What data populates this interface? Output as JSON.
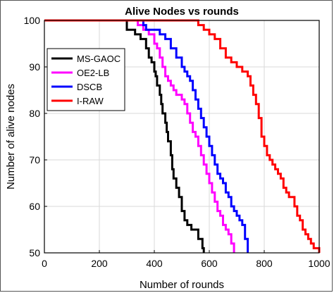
{
  "chart_data": {
    "type": "line",
    "title": "Alive Nodes vs rounds",
    "xlabel": "Number of rounds",
    "ylabel": "Number of alive nodes",
    "xlim": [
      0,
      1000
    ],
    "ylim": [
      50,
      100
    ],
    "xticks": [
      "0",
      "200",
      "400",
      "600",
      "800",
      "1000"
    ],
    "yticks": [
      "50",
      "60",
      "70",
      "80",
      "90",
      "100"
    ],
    "grid": true,
    "legend_position": "left",
    "series": [
      {
        "name": "MS-GAOC",
        "color": "#000000",
        "x": [
          0,
          290,
          300,
          330,
          350,
          370,
          380,
          390,
          400,
          405,
          410,
          420,
          425,
          430,
          440,
          445,
          450,
          460,
          465,
          470,
          480,
          490,
          500,
          510,
          520,
          535,
          560,
          575,
          580
        ],
        "y": [
          100,
          100,
          98,
          97,
          96,
          94,
          92,
          91,
          89,
          88,
          86,
          84,
          82,
          80,
          78,
          76,
          74,
          71,
          68,
          66,
          64,
          62,
          59,
          57,
          56,
          55,
          53,
          51,
          50
        ]
      },
      {
        "name": "OE2-LB",
        "color": "#ff00ff",
        "x": [
          0,
          330,
          340,
          360,
          380,
          400,
          410,
          420,
          430,
          440,
          450,
          460,
          470,
          480,
          500,
          510,
          520,
          530,
          540,
          550,
          560,
          570,
          580,
          590,
          600,
          610,
          620,
          630,
          640,
          650,
          660,
          670,
          680,
          690
        ],
        "y": [
          100,
          100,
          99,
          98,
          97,
          95,
          94,
          92,
          90,
          88,
          87,
          86,
          85,
          84,
          83,
          82,
          80,
          78,
          76,
          75,
          73,
          71,
          69,
          67,
          65,
          63,
          61,
          59,
          58,
          56,
          55,
          54,
          52,
          50
        ]
      },
      {
        "name": "DSCB",
        "color": "#0000ff",
        "x": [
          0,
          350,
          360,
          370,
          400,
          420,
          440,
          460,
          480,
          500,
          510,
          520,
          530,
          540,
          550,
          560,
          570,
          580,
          590,
          600,
          610,
          620,
          630,
          640,
          650,
          660,
          670,
          680,
          690,
          700,
          710,
          720,
          730,
          740
        ],
        "y": [
          100,
          100,
          99,
          98,
          98,
          97,
          96,
          94,
          92,
          90,
          89,
          88,
          87,
          85,
          83,
          81,
          79,
          77,
          75,
          73,
          71,
          69,
          67,
          66,
          65,
          63,
          62,
          60,
          59,
          58,
          57,
          56,
          53,
          50
        ]
      },
      {
        "name": "I-RAW",
        "color": "#ff0000",
        "x": [
          0,
          550,
          560,
          580,
          600,
          620,
          640,
          660,
          680,
          700,
          720,
          740,
          750,
          760,
          770,
          780,
          790,
          800,
          810,
          820,
          830,
          840,
          850,
          860,
          870,
          880,
          890,
          900,
          910,
          920,
          930,
          940,
          950,
          960,
          970,
          980,
          990,
          1000
        ],
        "y": [
          100,
          100,
          99,
          98,
          97,
          96,
          94,
          92,
          91,
          90,
          89,
          88,
          86,
          84,
          82,
          79,
          75,
          73,
          71,
          70,
          69,
          68,
          67,
          66,
          64,
          63,
          62,
          62,
          60,
          58,
          57,
          55,
          54,
          53,
          52,
          51,
          51,
          50
        ]
      }
    ]
  }
}
